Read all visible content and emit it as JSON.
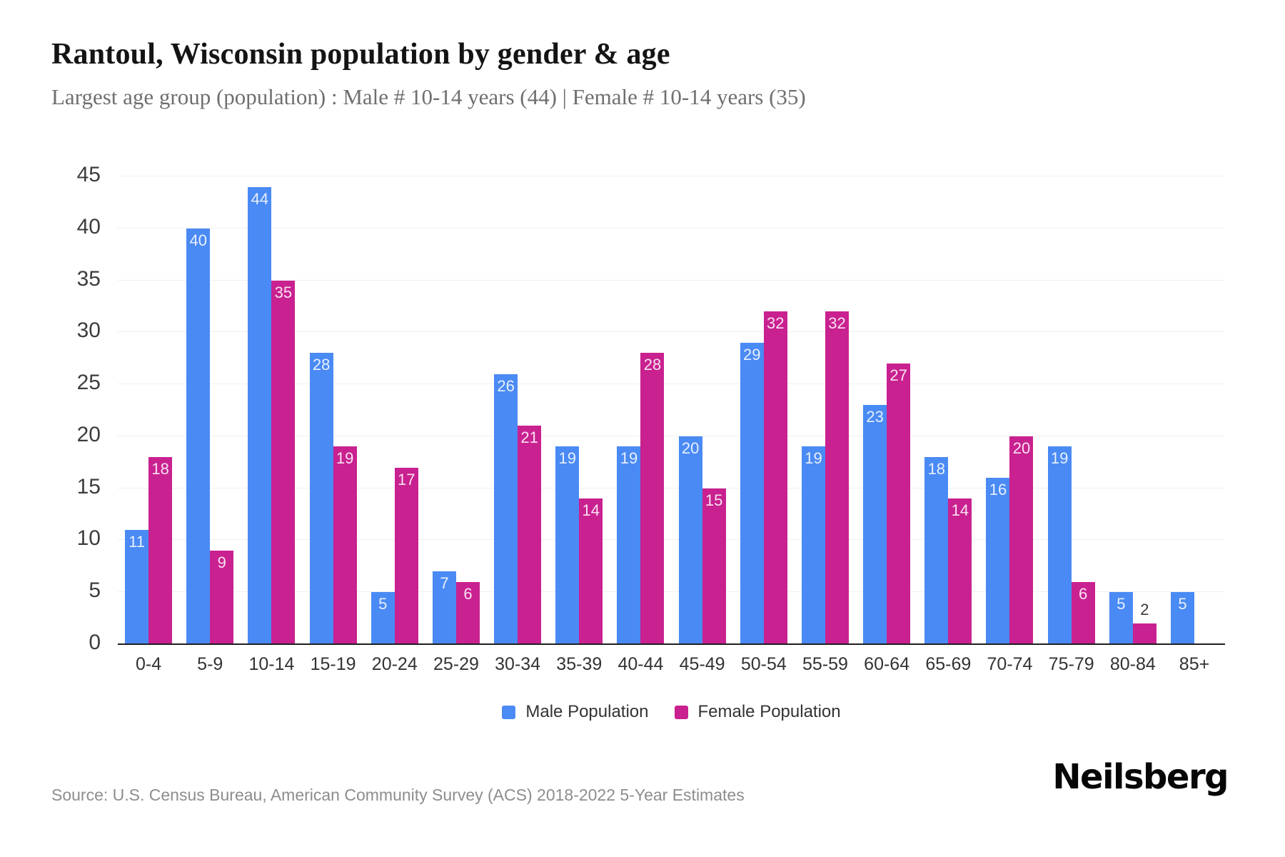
{
  "header": {
    "title": "Rantoul, Wisconsin population by gender & age",
    "subtitle": "Largest age group (population) : Male # 10-14 years (44) | Female # 10-14 years (35)"
  },
  "chart_data": {
    "type": "bar",
    "title": "Rantoul, Wisconsin population by gender & age",
    "categories": [
      "0-4",
      "5-9",
      "10-14",
      "15-19",
      "20-24",
      "25-29",
      "30-34",
      "35-39",
      "40-44",
      "45-49",
      "50-54",
      "55-59",
      "60-64",
      "65-69",
      "70-74",
      "75-79",
      "80-84",
      "85+"
    ],
    "series": [
      {
        "name": "Male Population",
        "color": "#4a8af4",
        "values": [
          11,
          40,
          44,
          28,
          5,
          7,
          26,
          19,
          19,
          20,
          29,
          19,
          23,
          18,
          16,
          19,
          5,
          5
        ]
      },
      {
        "name": "Female Population",
        "color": "#c92190",
        "values": [
          18,
          9,
          35,
          19,
          17,
          6,
          21,
          14,
          28,
          15,
          32,
          32,
          27,
          14,
          20,
          6,
          2,
          0
        ]
      }
    ],
    "xlabel": "",
    "ylabel": "",
    "ylim": [
      0,
      45
    ],
    "yticks": [
      0,
      5,
      10,
      15,
      20,
      25,
      30,
      35,
      40,
      45
    ],
    "grid": "horizontal",
    "legend_position": "bottom",
    "data_label_inside_color": "rgba(255,255,255,0.87)",
    "data_label_outside_color": "#3a3a3a"
  },
  "footer": {
    "source": "Source: U.S. Census Bureau, American Community Survey (ACS) 2018-2022 5-Year Estimates",
    "brand": "Neilsberg"
  }
}
